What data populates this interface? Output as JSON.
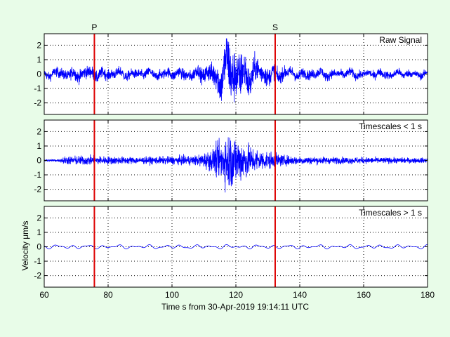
{
  "colors": {
    "background": "#e8fce8",
    "signal": "#0000ff",
    "marker": "#dd0000",
    "axes": "#000000",
    "grid": "#000000"
  },
  "chart_data": {
    "type": "line",
    "shared_x_axis": {
      "label": "Time s from 30-Apr-2019 19:14:11 UTC",
      "range": [
        60,
        180
      ],
      "ticks": [
        60,
        80,
        100,
        120,
        140,
        160,
        180
      ],
      "tick_labels": [
        "60",
        "80",
        "100",
        "120",
        "140",
        "160",
        "180"
      ]
    },
    "markers": [
      {
        "label": "P",
        "x": 75.7,
        "color": "#dd0000"
      },
      {
        "label": "S",
        "x": 132.3,
        "color": "#dd0000"
      }
    ],
    "ylabel": "Velocity μm/s",
    "panels": [
      {
        "name": "Raw Signal",
        "ylim": [
          -2.8,
          2.8
        ],
        "yticks": [
          -2,
          -1,
          0,
          1,
          2
        ],
        "ytick_labels": [
          "-2",
          "-1",
          "0",
          "1",
          "2"
        ],
        "grid": true,
        "envelope": {
          "x": [
            60,
            65,
            70,
            75,
            80,
            90,
            100,
            108,
            112,
            115,
            117,
            118,
            119,
            121,
            123,
            125,
            128,
            132,
            135,
            140,
            150,
            160,
            170,
            180
          ],
          "amp": [
            0.35,
            0.45,
            0.55,
            0.55,
            0.45,
            0.4,
            0.45,
            0.55,
            0.9,
            1.6,
            2.3,
            2.7,
            2.5,
            2.1,
            1.7,
            1.3,
            0.95,
            0.7,
            0.55,
            0.45,
            0.4,
            0.35,
            0.35,
            0.3
          ]
        },
        "low_frequency_weight": 0.45
      },
      {
        "name": "Timescales < 1 s",
        "ylim": [
          -2.8,
          2.8
        ],
        "yticks": [
          -2,
          -1,
          0,
          1,
          2
        ],
        "ytick_labels": [
          "-2",
          "-1",
          "0",
          "1",
          "2"
        ],
        "grid": true,
        "envelope": {
          "x": [
            60,
            65,
            66,
            70,
            75,
            80,
            90,
            100,
            108,
            112,
            115,
            117,
            118,
            119,
            121,
            123,
            125,
            128,
            132,
            135,
            140,
            150,
            160,
            170,
            180
          ],
          "amp": [
            0.1,
            0.12,
            0.35,
            0.4,
            0.42,
            0.35,
            0.3,
            0.35,
            0.45,
            0.9,
            1.6,
            2.3,
            2.6,
            2.4,
            2.0,
            1.6,
            1.2,
            0.9,
            0.65,
            0.45,
            0.35,
            0.3,
            0.28,
            0.25,
            0.22
          ]
        },
        "low_frequency_weight": 0.0
      },
      {
        "name": "Timescales > 1 s",
        "ylim": [
          -2.8,
          2.8
        ],
        "yticks": [
          -2,
          -1,
          0,
          1,
          2
        ],
        "ytick_labels": [
          "-2",
          "-1",
          "0",
          "1",
          "2"
        ],
        "grid": true,
        "envelope": {
          "x": [
            60,
            180
          ],
          "amp": [
            0,
            0
          ]
        },
        "low_frequency_weight": 1.0,
        "low_frequency_amp": 0.13
      }
    ]
  }
}
